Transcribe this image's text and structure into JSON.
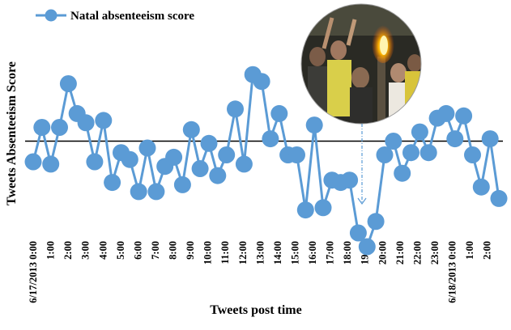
{
  "chart_data": {
    "type": "line",
    "xlabel": "Tweets post time",
    "ylabel": "Tweets Absenteeism Score",
    "legend": {
      "position": "top-left"
    },
    "baseline": 0,
    "ylim": [
      -4,
      3.4
    ],
    "grid": false,
    "annotation": {
      "type": "photo-inset",
      "arrow_to_point_index": 50
    },
    "tick_labels": [
      {
        "label": "6/17/2013 0:00",
        "index": 0
      },
      {
        "label": "1:00",
        "index": 3
      },
      {
        "label": "2:00",
        "index": 6
      },
      {
        "label": "3:00",
        "index": 9
      },
      {
        "label": "4:00",
        "index": 12
      },
      {
        "label": "5:00",
        "index": 15
      },
      {
        "label": "6:00",
        "index": 18
      },
      {
        "label": "7:00",
        "index": 21
      },
      {
        "label": "8:00",
        "index": 24
      },
      {
        "label": "9:00",
        "index": 27
      },
      {
        "label": "10:00",
        "index": 30
      },
      {
        "label": "11:00",
        "index": 33
      },
      {
        "label": "12:00",
        "index": 36
      },
      {
        "label": "13:00",
        "index": 39
      },
      {
        "label": "14:00",
        "index": 42
      },
      {
        "label": "15:00",
        "index": 45
      },
      {
        "label": "16:00",
        "index": 48
      },
      {
        "label": "17:00",
        "index": 51
      },
      {
        "label": "18:00",
        "index": 54
      },
      {
        "label": "19:00",
        "index": 57
      },
      {
        "label": "20:00",
        "index": 60
      },
      {
        "label": "21:00",
        "index": 63
      },
      {
        "label": "22:00",
        "index": 66
      },
      {
        "label": "23:00",
        "index": 69
      },
      {
        "label": "6/18/2013 0:00",
        "index": 72
      },
      {
        "label": "1:00",
        "index": 75
      },
      {
        "label": "2:00",
        "index": 78
      }
    ],
    "series": [
      {
        "name": "Natal absenteeism score",
        "color": "#5b9bd5",
        "points": [
          [
            0,
            -0.9
          ],
          [
            1,
            0.6
          ],
          [
            2,
            -1.0
          ],
          [
            3,
            0.6
          ],
          [
            4,
            2.5
          ],
          [
            5,
            1.2
          ],
          [
            6,
            0.8
          ],
          [
            7,
            -0.9
          ],
          [
            8,
            0.9
          ],
          [
            9,
            -1.8
          ],
          [
            10,
            -0.5
          ],
          [
            11,
            -0.8
          ],
          [
            12,
            -2.2
          ],
          [
            13,
            -0.3
          ],
          [
            14,
            -2.2
          ],
          [
            15,
            -1.1
          ],
          [
            16,
            -0.7
          ],
          [
            17,
            -1.9
          ],
          [
            18,
            0.5
          ],
          [
            19,
            -1.2
          ],
          [
            20,
            -0.1
          ],
          [
            21,
            -1.5
          ],
          [
            22,
            -0.6
          ],
          [
            23,
            1.4
          ],
          [
            24,
            -1.0
          ],
          [
            25,
            2.9
          ],
          [
            26,
            2.6
          ],
          [
            27,
            0.1
          ],
          [
            28,
            1.2
          ],
          [
            29,
            -0.6
          ],
          [
            30,
            -0.6
          ],
          [
            31,
            -3.0
          ],
          [
            32,
            0.7
          ],
          [
            33,
            -2.9
          ],
          [
            34,
            -1.7
          ],
          [
            35,
            -1.8
          ],
          [
            36,
            -1.7
          ],
          [
            37,
            -4.0
          ],
          [
            38,
            -4.6
          ],
          [
            39,
            -3.5
          ],
          [
            40,
            -0.6
          ],
          [
            41,
            0.0
          ],
          [
            42,
            -1.4
          ],
          [
            43,
            -0.5
          ],
          [
            44,
            0.4
          ],
          [
            45,
            -0.5
          ],
          [
            46,
            1.0
          ],
          [
            47,
            1.2
          ],
          [
            48,
            0.1
          ],
          [
            49,
            1.1
          ],
          [
            50,
            -0.6
          ],
          [
            51,
            -2.0
          ],
          [
            52,
            0.1
          ],
          [
            53,
            -2.5
          ]
        ]
      }
    ]
  }
}
